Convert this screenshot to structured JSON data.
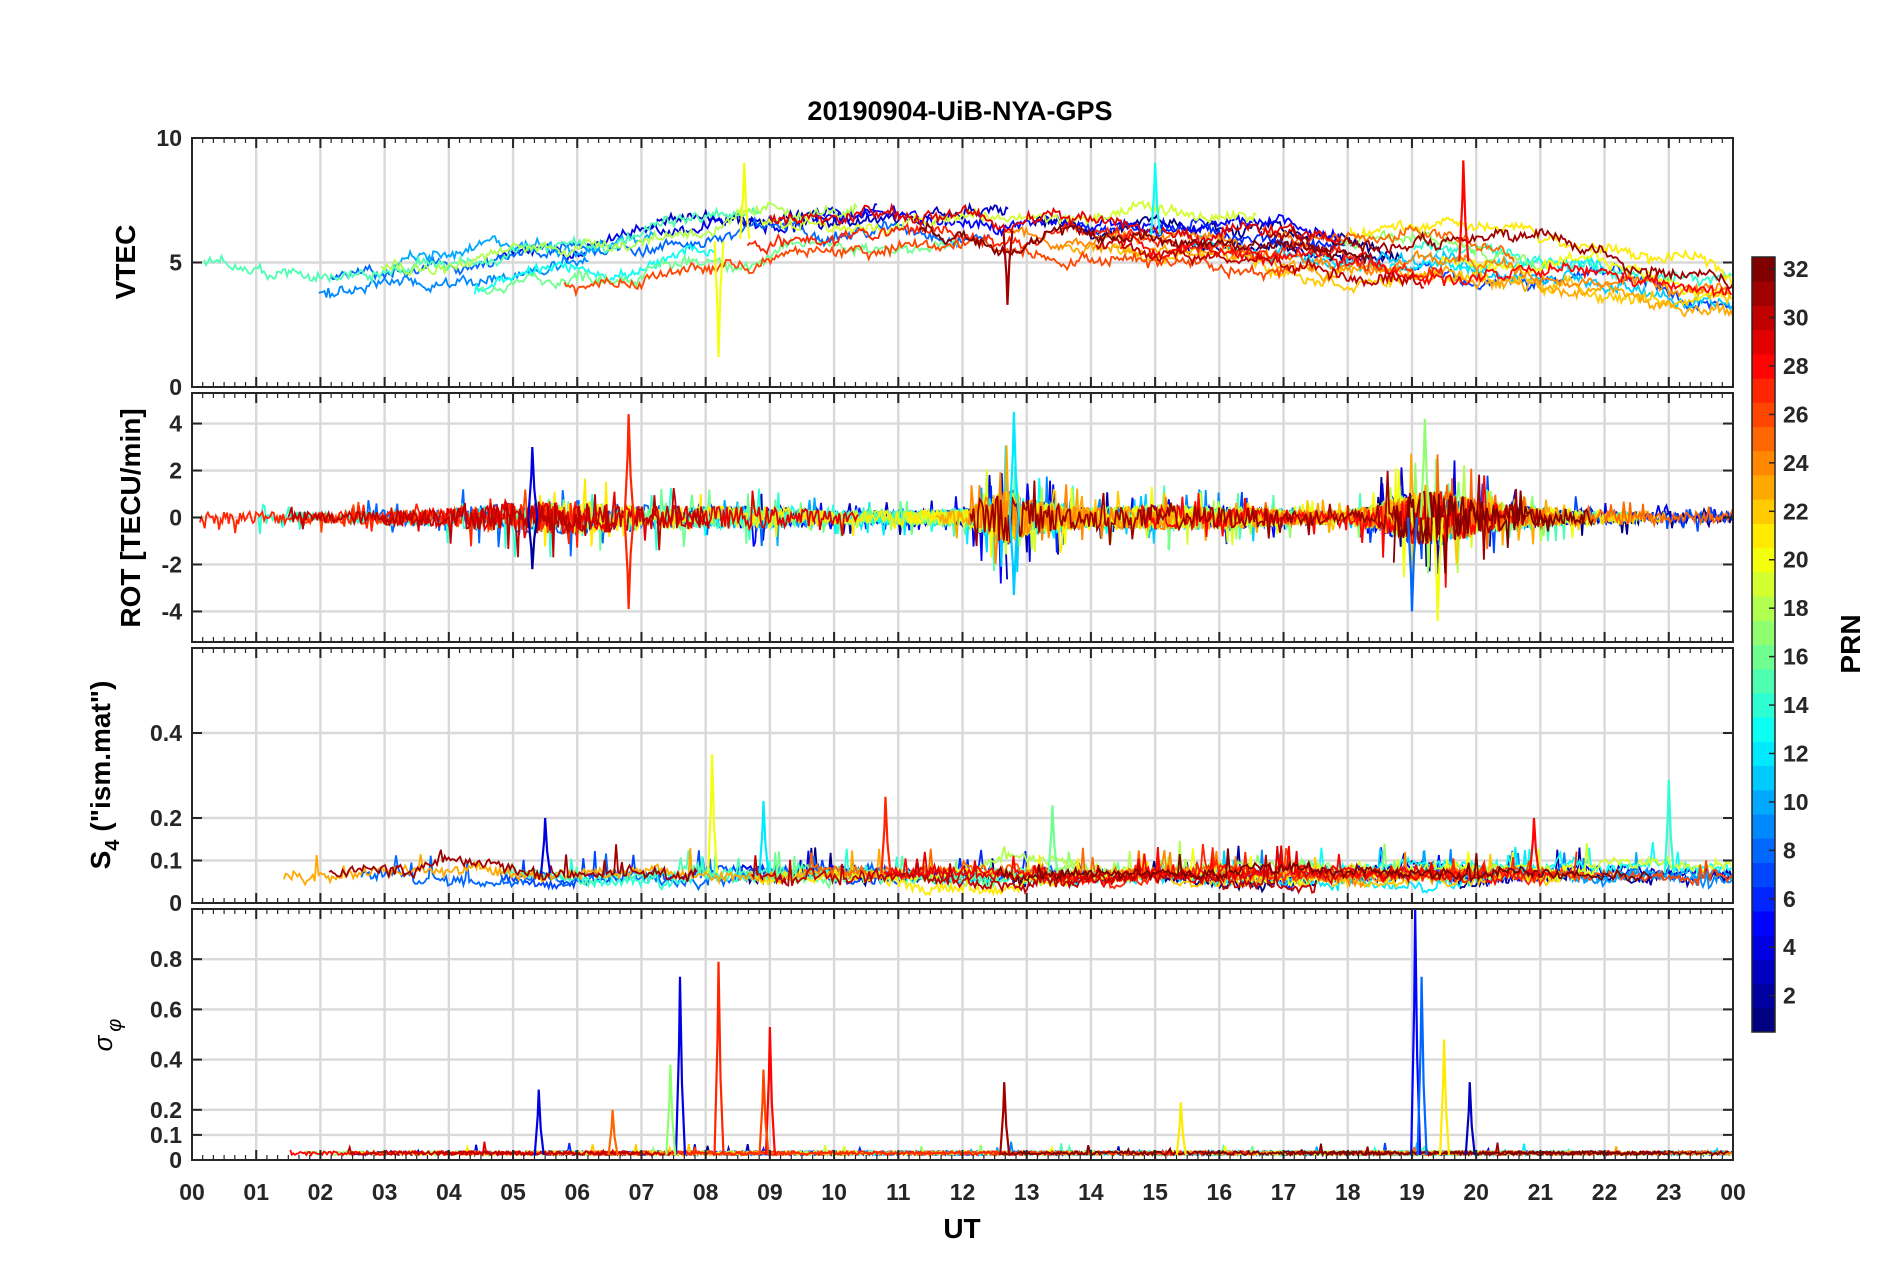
{
  "chart_data": {
    "type": "line",
    "title": "20190904-UiB-NYA-GPS",
    "xlabel": "UT",
    "xlim": [
      0,
      24
    ],
    "x_ticks": [
      "00",
      "01",
      "02",
      "03",
      "04",
      "05",
      "06",
      "07",
      "08",
      "09",
      "10",
      "11",
      "12",
      "13",
      "14",
      "15",
      "16",
      "17",
      "18",
      "19",
      "20",
      "21",
      "22",
      "23",
      "00"
    ],
    "grid": true,
    "colorbar": {
      "label": "PRN",
      "range": [
        1,
        32
      ],
      "ticks": [
        2,
        4,
        6,
        8,
        10,
        12,
        14,
        16,
        18,
        20,
        22,
        24,
        26,
        28,
        30,
        32
      ],
      "colormap": "jet",
      "placement": "right"
    },
    "panels": [
      {
        "name": "vtec",
        "ylabel": "VTEC",
        "ylim": [
          0,
          10
        ],
        "yticks": [
          0,
          5,
          10
        ],
        "summary": {
          "hours": [
            0,
            2,
            4,
            6,
            8,
            10,
            12,
            14,
            16,
            18,
            20,
            22,
            24
          ],
          "values": [
            4.2,
            4.0,
            4.3,
            5.0,
            5.8,
            6.3,
            6.3,
            6.2,
            6.0,
            5.4,
            5.0,
            4.6,
            3.8
          ],
          "spread": [
            1.0,
            1.1,
            1.0,
            1.0,
            1.1,
            0.9,
            0.9,
            0.8,
            0.9,
            0.9,
            1.0,
            0.9,
            0.8
          ]
        },
        "peaks": [
          {
            "hour": 8.2,
            "value": 1.2,
            "prn": 20
          },
          {
            "hour": 8.6,
            "value": 9.0,
            "prn": 20
          },
          {
            "hour": 19.8,
            "value": 9.1,
            "prn": 28
          },
          {
            "hour": 15.0,
            "value": 9.0,
            "prn": 13
          },
          {
            "hour": 12.7,
            "value": 3.3,
            "prn": 31
          }
        ]
      },
      {
        "name": "rot",
        "ylabel": "ROT [TECU/min]",
        "ylim": [
          -5.3,
          5.3
        ],
        "yticks": [
          -4,
          -2,
          0,
          2,
          4
        ],
        "activity": {
          "hours": [
            0,
            1,
            2,
            3,
            4,
            5,
            6,
            7,
            8,
            9,
            10,
            11,
            12,
            12.7,
            13,
            14,
            15,
            16,
            17,
            18,
            19,
            19.5,
            20,
            21,
            22,
            23,
            24
          ],
          "amplitude": [
            0.4,
            0.5,
            0.4,
            0.5,
            0.7,
            1.1,
            1.2,
            0.9,
            0.8,
            0.8,
            0.5,
            0.5,
            0.6,
            2.0,
            1.3,
            0.7,
            0.9,
            0.8,
            0.6,
            0.4,
            1.8,
            2.0,
            1.2,
            0.7,
            0.5,
            0.4,
            0.4
          ]
        },
        "peaks": [
          {
            "hour": 6.8,
            "value": 4.4,
            "prn": 27
          },
          {
            "hour": 6.8,
            "value": -3.9,
            "prn": 27
          },
          {
            "hour": 12.8,
            "value": 4.5,
            "prn": 12
          },
          {
            "hour": 12.8,
            "value": -3.3,
            "prn": 11
          },
          {
            "hour": 19.4,
            "value": -4.4,
            "prn": 20
          },
          {
            "hour": 19.0,
            "value": -4.0,
            "prn": 8
          },
          {
            "hour": 19.2,
            "value": 4.2,
            "prn": 17
          },
          {
            "hour": 5.3,
            "value": 3.0,
            "prn": 4
          },
          {
            "hour": 5.3,
            "value": -2.2,
            "prn": 2
          }
        ]
      },
      {
        "name": "s4",
        "ylabel_main": "S",
        "ylabel_sub": "4",
        "ylabel_rest": "(\"ism.mat\")",
        "ylim": [
          0,
          0.6
        ],
        "yticks": [
          0,
          0.1,
          0.2,
          0.4
        ],
        "baseline": 0.07,
        "peaks": [
          {
            "hour": 8.1,
            "value": 0.35,
            "prn": 20
          },
          {
            "hour": 10.8,
            "value": 0.25,
            "prn": 27
          },
          {
            "hour": 23.0,
            "value": 0.29,
            "prn": 14
          },
          {
            "hour": 5.5,
            "value": 0.2,
            "prn": 4
          },
          {
            "hour": 20.9,
            "value": 0.2,
            "prn": 28
          },
          {
            "hour": 13.4,
            "value": 0.23,
            "prn": 16
          },
          {
            "hour": 8.9,
            "value": 0.24,
            "prn": 12
          }
        ]
      },
      {
        "name": "sigma_phi",
        "ylabel": "σ",
        "ylabel_sub": "φ",
        "ylim": [
          0,
          1.0
        ],
        "yticks": [
          0,
          0.1,
          0.2,
          0.4,
          0.6,
          0.8
        ],
        "baseline": 0.02,
        "peaks": [
          {
            "hour": 19.05,
            "value": 1.0,
            "prn": 5
          },
          {
            "hour": 19.15,
            "value": 0.73,
            "prn": 8
          },
          {
            "hour": 8.2,
            "value": 0.79,
            "prn": 27
          },
          {
            "hour": 7.6,
            "value": 0.73,
            "prn": 4
          },
          {
            "hour": 9.0,
            "value": 0.53,
            "prn": 28
          },
          {
            "hour": 8.9,
            "value": 0.36,
            "prn": 26
          },
          {
            "hour": 19.5,
            "value": 0.48,
            "prn": 21
          },
          {
            "hour": 7.45,
            "value": 0.38,
            "prn": 17
          },
          {
            "hour": 12.65,
            "value": 0.31,
            "prn": 31
          },
          {
            "hour": 19.9,
            "value": 0.31,
            "prn": 3
          },
          {
            "hour": 5.4,
            "value": 0.28,
            "prn": 4
          },
          {
            "hour": 15.4,
            "value": 0.23,
            "prn": 21
          },
          {
            "hour": 6.55,
            "value": 0.2,
            "prn": 25
          }
        ]
      }
    ]
  }
}
